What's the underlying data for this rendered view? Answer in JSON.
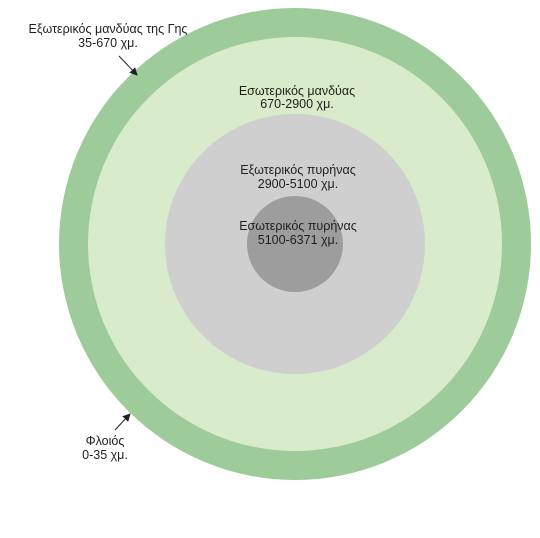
{
  "layers": [
    {
      "id": "outer-mantle",
      "name": "Εξωτερικός  μανδύας της Γης",
      "range": "35-670 χμ.",
      "color": "#9dcc9a"
    },
    {
      "id": "inner-mantle",
      "name": "Εσωτερικός  μανδύας",
      "range": "670-2900 χμ.",
      "color": "#d8ebcb"
    },
    {
      "id": "outer-core",
      "name": "Εξωτερικός  πυρήνας",
      "range": "2900-5100 χμ.",
      "color": "#cfcfcf"
    },
    {
      "id": "inner-core",
      "name": "Εσωτερικός  πυρήνας",
      "range": "5100-6371 χμ.",
      "color": "#9d9d9d"
    },
    {
      "id": "crust",
      "name": "Φλοιός",
      "range": "0-35 χμ.",
      "color": "#3a3a3a"
    }
  ]
}
